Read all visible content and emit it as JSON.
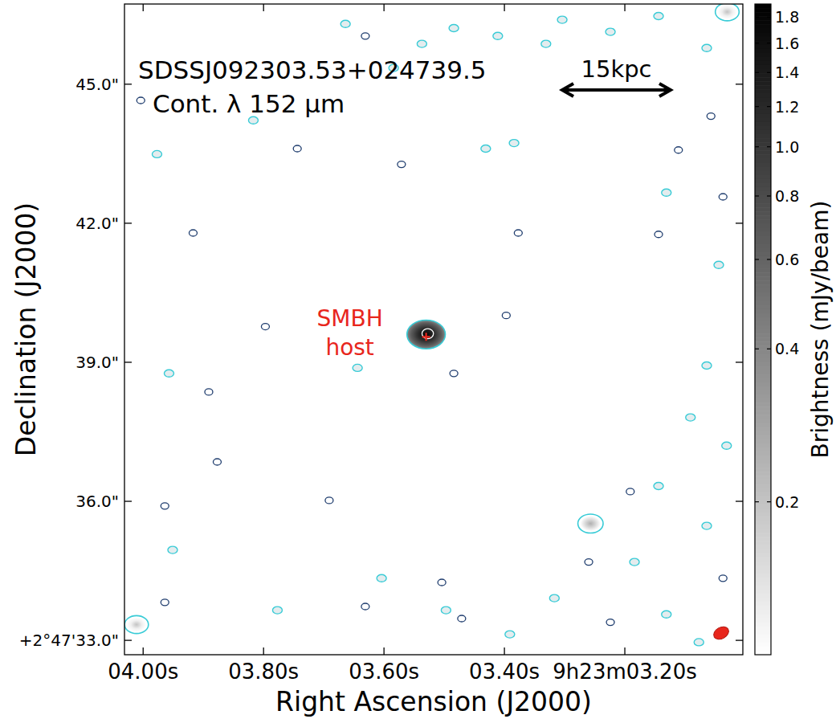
{
  "chart_data": {
    "type": "image",
    "title": "SDSSJ092303.53+024739.5",
    "subtitle": "Cont. λ 152 μm",
    "x_label": "Right Ascension (J2000)",
    "y_label": "Declination (J2000)",
    "xlim": [
      4.031,
      3.004
    ],
    "ylim": [
      32.69,
      46.73
    ],
    "xticks": [
      {
        "value": 4.0,
        "label": "04.00s"
      },
      {
        "value": 3.8,
        "label": "03.80s"
      },
      {
        "value": 3.6,
        "label": "03.60s"
      },
      {
        "value": 3.4,
        "label": "03.40s"
      },
      {
        "value": 3.2,
        "label": "9h23m03.20s"
      }
    ],
    "yticks": [
      {
        "value": 33,
        "label": "+2°47'33.0\""
      },
      {
        "value": 36,
        "label": "36.0\""
      },
      {
        "value": 39,
        "label": "39.0\""
      },
      {
        "value": 42,
        "label": "42.0\""
      },
      {
        "value": 45,
        "label": "45.0\""
      }
    ],
    "colorbar": {
      "label": "Brightness (mJy/beam)",
      "range": [
        0.1,
        1.91
      ],
      "log": true,
      "ticks": [
        0.2,
        0.4,
        0.6,
        0.8,
        {
          "value": 1,
          "label": "1.0"
        },
        1.2,
        1.4,
        1.6,
        1.8
      ]
    },
    "annotation": "SMBH host",
    "scale_bar": {
      "label": "15kpc",
      "length_arcsec": 2.7
    },
    "sources": [
      {
        "ra": 3.53,
        "dec": 39.6,
        "peak": 1.85
      },
      {
        "ra": 3.257,
        "dec": 35.52,
        "peak": 0.25
      },
      {
        "ra": 4.011,
        "dec": 33.34,
        "peak": 0.2
      },
      {
        "ra": 3.03,
        "dec": 46.56,
        "peak": 0.2
      }
    ],
    "contours": {
      "positive": [
        [
          3.664,
          46.3
        ],
        [
          3.584,
          45.35
        ],
        [
          3.537,
          45.87
        ],
        [
          3.484,
          46.21
        ],
        [
          3.411,
          46.04
        ],
        [
          3.331,
          45.87
        ],
        [
          3.304,
          46.39
        ],
        [
          3.224,
          46.13
        ],
        [
          3.144,
          46.47
        ],
        [
          3.064,
          45.78
        ],
        [
          3.977,
          43.49
        ],
        [
          3.817,
          44.22
        ],
        [
          3.431,
          43.61
        ],
        [
          3.384,
          43.73
        ],
        [
          3.131,
          42.66
        ],
        [
          3.044,
          41.1
        ],
        [
          3.064,
          38.93
        ],
        [
          3.091,
          37.81
        ],
        [
          3.031,
          37.2
        ],
        [
          3.144,
          36.33
        ],
        [
          3.064,
          35.47
        ],
        [
          3.184,
          34.69
        ],
        [
          3.131,
          33.56
        ],
        [
          3.077,
          32.96
        ],
        [
          3.317,
          33.91
        ],
        [
          3.604,
          34.34
        ],
        [
          3.951,
          34.95
        ],
        [
          3.777,
          33.65
        ],
        [
          3.497,
          33.65
        ],
        [
          3.391,
          33.13
        ],
        [
          3.957,
          38.76
        ],
        [
          3.644,
          38.88
        ]
      ],
      "negative": [
        [
          4.004,
          44.65
        ],
        [
          3.631,
          46.04
        ],
        [
          3.571,
          43.27
        ],
        [
          3.744,
          43.61
        ],
        [
          3.917,
          41.79
        ],
        [
          3.377,
          41.79
        ],
        [
          3.144,
          41.76
        ],
        [
          3.397,
          40.01
        ],
        [
          3.797,
          39.77
        ],
        [
          3.891,
          38.36
        ],
        [
          3.484,
          38.76
        ],
        [
          3.877,
          36.85
        ],
        [
          3.691,
          36.02
        ],
        [
          3.964,
          35.9
        ],
        [
          3.191,
          36.21
        ],
        [
          3.26,
          34.69
        ],
        [
          3.631,
          33.73
        ],
        [
          3.964,
          33.82
        ],
        [
          3.471,
          33.47
        ],
        [
          3.111,
          43.58
        ],
        [
          3.057,
          44.31
        ],
        [
          3.037,
          42.57
        ],
        [
          3.504,
          34.25
        ],
        [
          3.037,
          34.34
        ],
        [
          3.224,
          33.39
        ]
      ]
    }
  }
}
